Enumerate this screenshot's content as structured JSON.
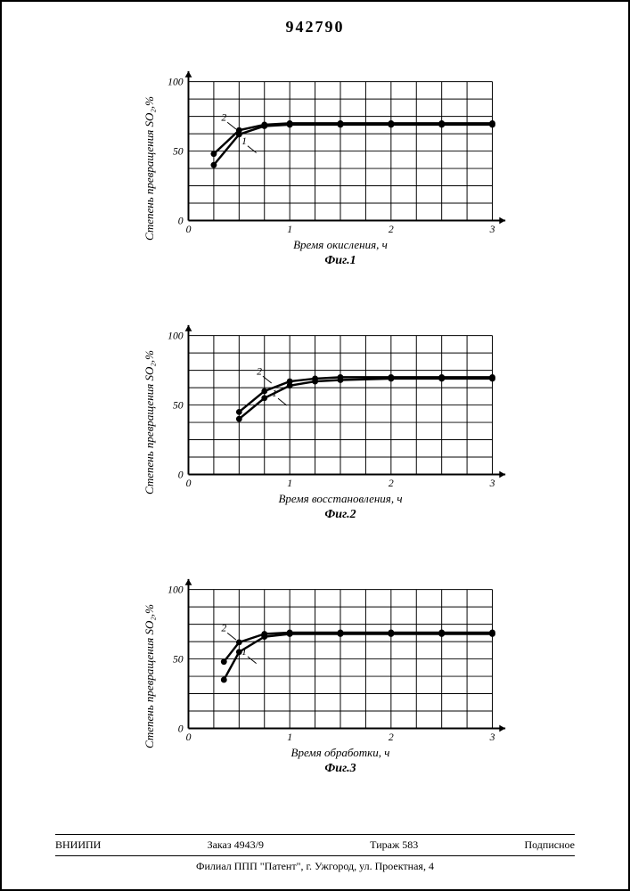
{
  "document_number": "942790",
  "charts": [
    {
      "id": "chart1",
      "y_label": "Степень превращения SO₂,%",
      "x_label": "Время окисления, ч",
      "fig_label": "Фиг.1",
      "type": "line",
      "xlim": [
        0,
        3
      ],
      "ylim": [
        0,
        100
      ],
      "x_ticks": [
        0,
        1,
        2,
        3
      ],
      "y_ticks": [
        0,
        50,
        100
      ],
      "grid_x_step": 0.25,
      "grid_y_step": 12.5,
      "background_color": "#ffffff",
      "grid_color": "#000000",
      "axis_color": "#000000",
      "curve_color": "#000000",
      "line_width": 2.5,
      "marker_size": 3.5,
      "font_size": 12,
      "series": [
        {
          "name": "1",
          "label_pos": {
            "x": 0.55,
            "y": 55
          },
          "points": [
            {
              "x": 0.25,
              "y": 40
            },
            {
              "x": 0.5,
              "y": 62
            },
            {
              "x": 0.75,
              "y": 68
            },
            {
              "x": 1.0,
              "y": 69
            },
            {
              "x": 1.5,
              "y": 69
            },
            {
              "x": 2.0,
              "y": 69
            },
            {
              "x": 2.5,
              "y": 69
            },
            {
              "x": 3.0,
              "y": 69
            }
          ]
        },
        {
          "name": "2",
          "label_pos": {
            "x": 0.35,
            "y": 72
          },
          "points": [
            {
              "x": 0.25,
              "y": 48
            },
            {
              "x": 0.5,
              "y": 65
            },
            {
              "x": 0.75,
              "y": 69
            },
            {
              "x": 1.0,
              "y": 70
            },
            {
              "x": 1.5,
              "y": 70
            },
            {
              "x": 2.0,
              "y": 70
            },
            {
              "x": 2.5,
              "y": 70
            },
            {
              "x": 3.0,
              "y": 70
            }
          ]
        }
      ]
    },
    {
      "id": "chart2",
      "y_label": "Степень превращения SO₂,%",
      "x_label": "Время восстановления, ч",
      "fig_label": "Фиг.2",
      "type": "line",
      "xlim": [
        0,
        3
      ],
      "ylim": [
        0,
        100
      ],
      "x_ticks": [
        0,
        1,
        2,
        3
      ],
      "y_ticks": [
        0,
        50,
        100
      ],
      "grid_x_step": 0.25,
      "grid_y_step": 12.5,
      "background_color": "#ffffff",
      "grid_color": "#000000",
      "axis_color": "#000000",
      "curve_color": "#000000",
      "line_width": 2.5,
      "marker_size": 3.5,
      "font_size": 12,
      "series": [
        {
          "name": "1",
          "label_pos": {
            "x": 0.85,
            "y": 56
          },
          "points": [
            {
              "x": 0.5,
              "y": 40
            },
            {
              "x": 0.75,
              "y": 55
            },
            {
              "x": 1.0,
              "y": 64
            },
            {
              "x": 1.25,
              "y": 67
            },
            {
              "x": 1.5,
              "y": 68
            },
            {
              "x": 2.0,
              "y": 69
            },
            {
              "x": 2.5,
              "y": 69
            },
            {
              "x": 3.0,
              "y": 69
            }
          ]
        },
        {
          "name": "2",
          "label_pos": {
            "x": 0.7,
            "y": 72
          },
          "points": [
            {
              "x": 0.5,
              "y": 45
            },
            {
              "x": 0.75,
              "y": 60
            },
            {
              "x": 1.0,
              "y": 67
            },
            {
              "x": 1.25,
              "y": 69
            },
            {
              "x": 1.5,
              "y": 70
            },
            {
              "x": 2.0,
              "y": 70
            },
            {
              "x": 2.5,
              "y": 70
            },
            {
              "x": 3.0,
              "y": 70
            }
          ]
        }
      ]
    },
    {
      "id": "chart3",
      "y_label": "Степень превращения SO₂,%",
      "x_label": "Время обработки, ч",
      "fig_label": "Фиг.3",
      "type": "line",
      "xlim": [
        0,
        3
      ],
      "ylim": [
        0,
        100
      ],
      "x_ticks": [
        0,
        1,
        2,
        3
      ],
      "y_ticks": [
        0,
        50,
        100
      ],
      "grid_x_step": 0.25,
      "grid_y_step": 12.5,
      "background_color": "#ffffff",
      "grid_color": "#000000",
      "axis_color": "#000000",
      "curve_color": "#000000",
      "line_width": 2.5,
      "marker_size": 3.5,
      "font_size": 12,
      "series": [
        {
          "name": "1",
          "label_pos": {
            "x": 0.55,
            "y": 53
          },
          "points": [
            {
              "x": 0.35,
              "y": 35
            },
            {
              "x": 0.5,
              "y": 55
            },
            {
              "x": 0.75,
              "y": 66
            },
            {
              "x": 1.0,
              "y": 68
            },
            {
              "x": 1.5,
              "y": 68
            },
            {
              "x": 2.0,
              "y": 68
            },
            {
              "x": 2.5,
              "y": 68
            },
            {
              "x": 3.0,
              "y": 68
            }
          ]
        },
        {
          "name": "2",
          "label_pos": {
            "x": 0.35,
            "y": 70
          },
          "points": [
            {
              "x": 0.35,
              "y": 48
            },
            {
              "x": 0.5,
              "y": 62
            },
            {
              "x": 0.75,
              "y": 68
            },
            {
              "x": 1.0,
              "y": 69
            },
            {
              "x": 1.5,
              "y": 69
            },
            {
              "x": 2.0,
              "y": 69
            },
            {
              "x": 2.5,
              "y": 69
            },
            {
              "x": 3.0,
              "y": 69
            }
          ]
        }
      ]
    }
  ],
  "footer": {
    "org": "ВНИИПИ",
    "order": "Заказ 4943/9",
    "tirage": "Тираж 583",
    "sub": "Подписное",
    "address": "Филиал ППП \"Патент\", г. Ужгород, ул. Проектная, 4"
  }
}
